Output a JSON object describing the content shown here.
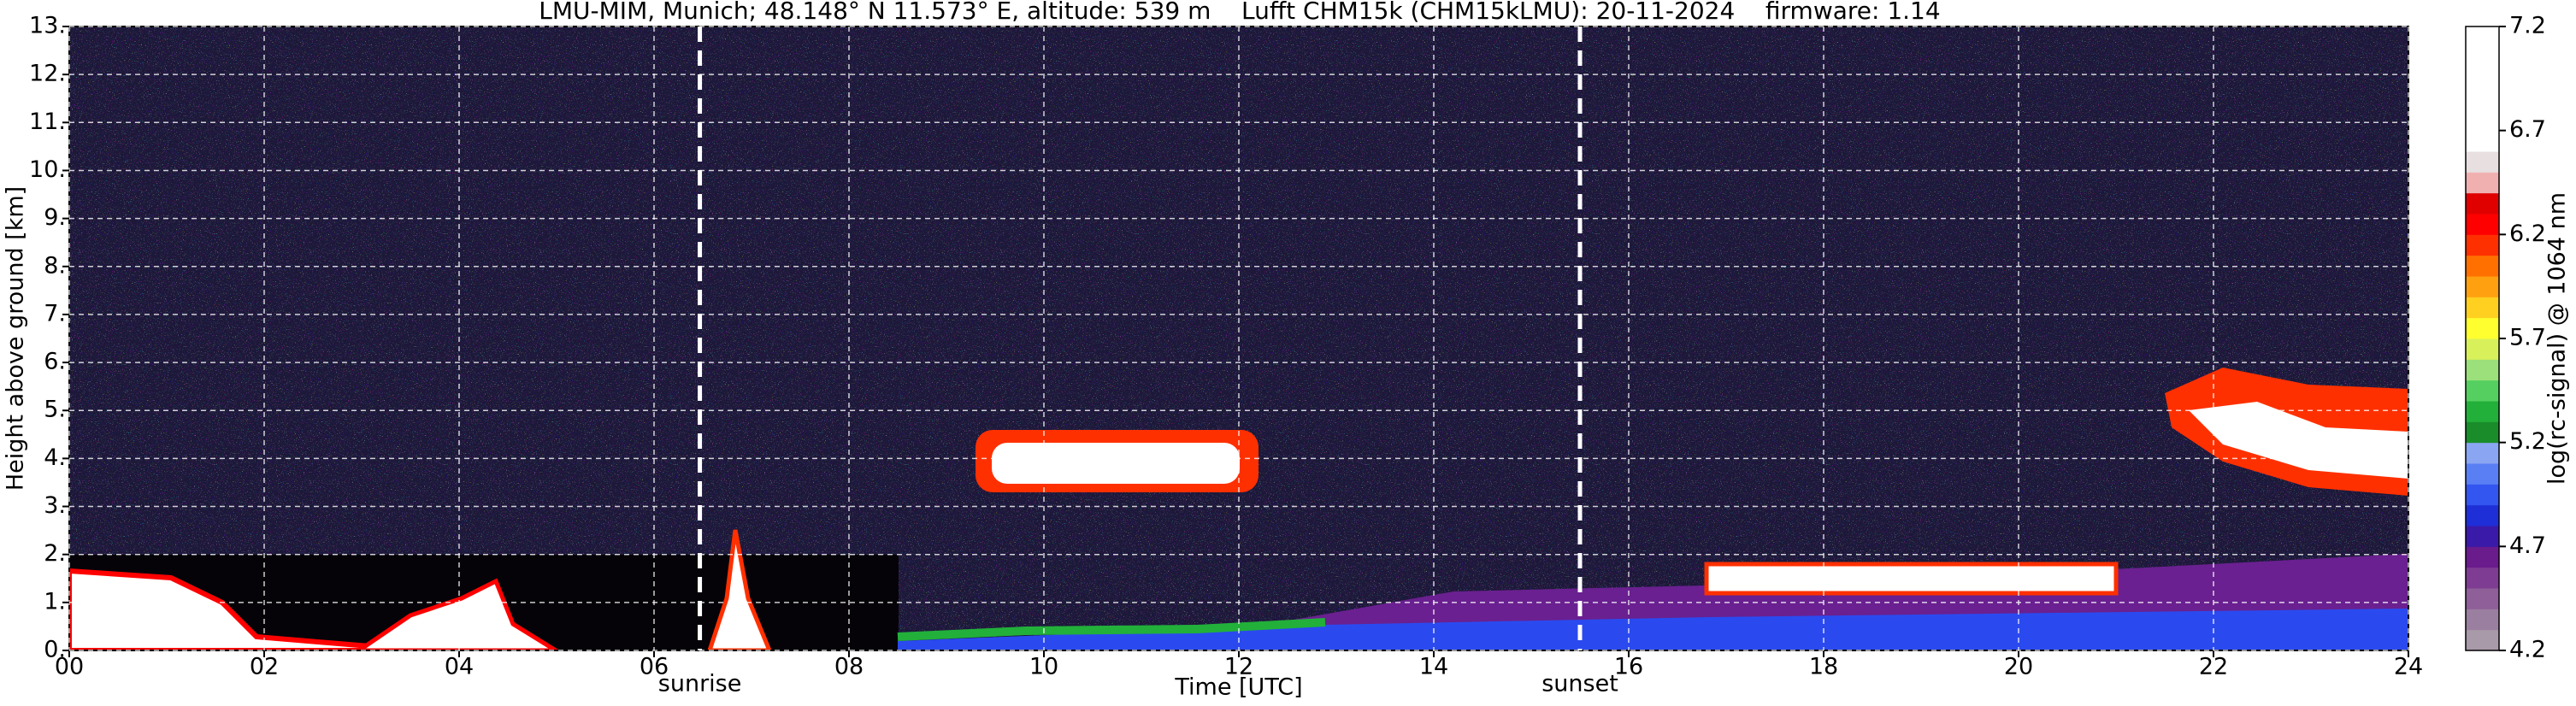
{
  "chart_data": {
    "type": "heatmap",
    "title": "LMU-MIM, Munich; 48.148° N 11.573° E, altitude: 539 m    Lufft CHM15k (CHM15kLMU): 20-11-2024    firmware: 1.14",
    "xlabel": "Time [UTC]",
    "ylabel": "Height above ground [km]",
    "xlim": [
      0,
      24
    ],
    "xticks": [
      {
        "value": 0,
        "label": "00"
      },
      {
        "value": 2,
        "label": "02"
      },
      {
        "value": 4,
        "label": "04"
      },
      {
        "value": 6,
        "label": "06"
      },
      {
        "value": 8,
        "label": "08"
      },
      10,
      12,
      14,
      16,
      18,
      20,
      22,
      24
    ],
    "ylim": [
      0,
      13
    ],
    "yticks": [
      {
        "value": 0,
        "label": "0."
      },
      {
        "value": 1,
        "label": "1."
      },
      {
        "value": 2,
        "label": "2."
      },
      {
        "value": 3,
        "label": "3."
      },
      {
        "value": 4,
        "label": "4."
      },
      {
        "value": 5,
        "label": "5."
      },
      {
        "value": 6,
        "label": "6."
      },
      {
        "value": 7,
        "label": "7."
      },
      {
        "value": 8,
        "label": "8."
      },
      {
        "value": 9,
        "label": "9."
      },
      {
        "value": 10,
        "label": "10."
      },
      {
        "value": 11,
        "label": "11."
      },
      {
        "value": 12,
        "label": "12."
      },
      {
        "value": 13,
        "label": "13."
      }
    ],
    "grid": true,
    "annotations": [
      {
        "text": "sunrise",
        "x": 6.47
      },
      {
        "text": "sunset",
        "x": 15.5
      }
    ],
    "colorbar": {
      "label": "log(rc-signal) @ 1064 nm",
      "lim": [
        4.2,
        7.2
      ],
      "ticks": [
        4.2,
        4.7,
        5.2,
        5.7,
        6.2,
        6.7,
        7.2
      ],
      "colors": [
        "#a89aa8",
        "#9b7fa0",
        "#8f5f99",
        "#7f3c93",
        "#6a1b8c",
        "#3a1aa8",
        "#1f2fd8",
        "#3355f0",
        "#5a7ff5",
        "#8aa6f2",
        "#1a8c2a",
        "#22b03a",
        "#55d060",
        "#9be07a",
        "#d8f05a",
        "#ffff30",
        "#ffd020",
        "#ffa010",
        "#ff7000",
        "#ff3000",
        "#ff0000",
        "#e00000",
        "#f0b0b0",
        "#e8e0e0",
        "#ffffff",
        "#ffffff",
        "#ffffff",
        "#ffffff",
        "#ffffff",
        "#ffffff"
      ]
    }
  }
}
